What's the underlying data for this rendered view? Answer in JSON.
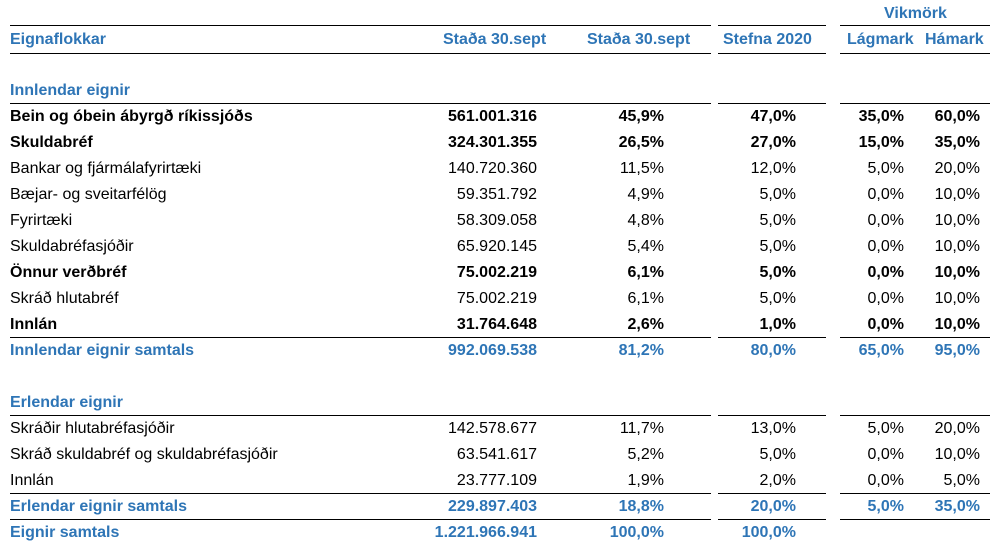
{
  "group_header": "Vikmörk",
  "header": {
    "eignaflokkar": "Eignaflokkar",
    "stada_amount": "Staða 30.sept",
    "stada_pct": "Staða 30.sept",
    "stefna": "Stefna 2020",
    "lagmark": "Lágmark",
    "hamark": "Hámark"
  },
  "sections": {
    "innlendar_title": "Innlendar eignir",
    "erlendar_title": "Erlendar eignir"
  },
  "innlendar_rows": [
    {
      "label": "Bein og óbein ábyrgð ríkissjóðs",
      "amount": "561.001.316",
      "pct": "45,9%",
      "stefna": "47,0%",
      "lag": "35,0%",
      "ham": "60,0%"
    },
    {
      "label": "Skuldabréf",
      "amount": "324.301.355",
      "pct": "26,5%",
      "stefna": "27,0%",
      "lag": "15,0%",
      "ham": "35,0%"
    },
    {
      "label": "Bankar og fjármálafyrirtæki",
      "amount": "140.720.360",
      "pct": "11,5%",
      "stefna": "12,0%",
      "lag": "5,0%",
      "ham": "20,0%"
    },
    {
      "label": "Bæjar- og sveitarfélög",
      "amount": "59.351.792",
      "pct": "4,9%",
      "stefna": "5,0%",
      "lag": "0,0%",
      "ham": "10,0%"
    },
    {
      "label": "Fyrirtæki",
      "amount": "58.309.058",
      "pct": "4,8%",
      "stefna": "5,0%",
      "lag": "0,0%",
      "ham": "10,0%"
    },
    {
      "label": "Skuldabréfasjóðir",
      "amount": "65.920.145",
      "pct": "5,4%",
      "stefna": "5,0%",
      "lag": "0,0%",
      "ham": "10,0%"
    },
    {
      "label": "Önnur verðbréf",
      "amount": "75.002.219",
      "pct": "6,1%",
      "stefna": "5,0%",
      "lag": "0,0%",
      "ham": "10,0%"
    },
    {
      "label": "Skráð hlutabréf",
      "amount": "75.002.219",
      "pct": "6,1%",
      "stefna": "5,0%",
      "lag": "0,0%",
      "ham": "10,0%"
    },
    {
      "label": "Innlán",
      "amount": "31.764.648",
      "pct": "2,6%",
      "stefna": "1,0%",
      "lag": "0,0%",
      "ham": "10,0%"
    }
  ],
  "innlendar_total": {
    "label": "Innlendar eignir samtals",
    "amount": "992.069.538",
    "pct": "81,2%",
    "stefna": "80,0%",
    "lag": "65,0%",
    "ham": "95,0%"
  },
  "erlendar_rows": [
    {
      "label": "Skráðir hlutabréfasjóðir",
      "amount": "142.578.677",
      "pct": "11,7%",
      "stefna": "13,0%",
      "lag": "5,0%",
      "ham": "20,0%"
    },
    {
      "label": "Skráð skuldabréf og skuldabréfasjóðir",
      "amount": "63.541.617",
      "pct": "5,2%",
      "stefna": "5,0%",
      "lag": "0,0%",
      "ham": "10,0%"
    },
    {
      "label": "Innlán",
      "amount": "23.777.109",
      "pct": "1,9%",
      "stefna": "2,0%",
      "lag": "0,0%",
      "ham": "5,0%"
    }
  ],
  "erlendar_total": {
    "label": "Erlendar eignir samtals",
    "amount": "229.897.403",
    "pct": "18,8%",
    "stefna": "20,0%",
    "lag": "5,0%",
    "ham": "35,0%"
  },
  "grand_total": {
    "label": "Eignir samtals",
    "amount": "1.221.966.941",
    "pct": "100,0%",
    "stefna": "100,0%"
  }
}
